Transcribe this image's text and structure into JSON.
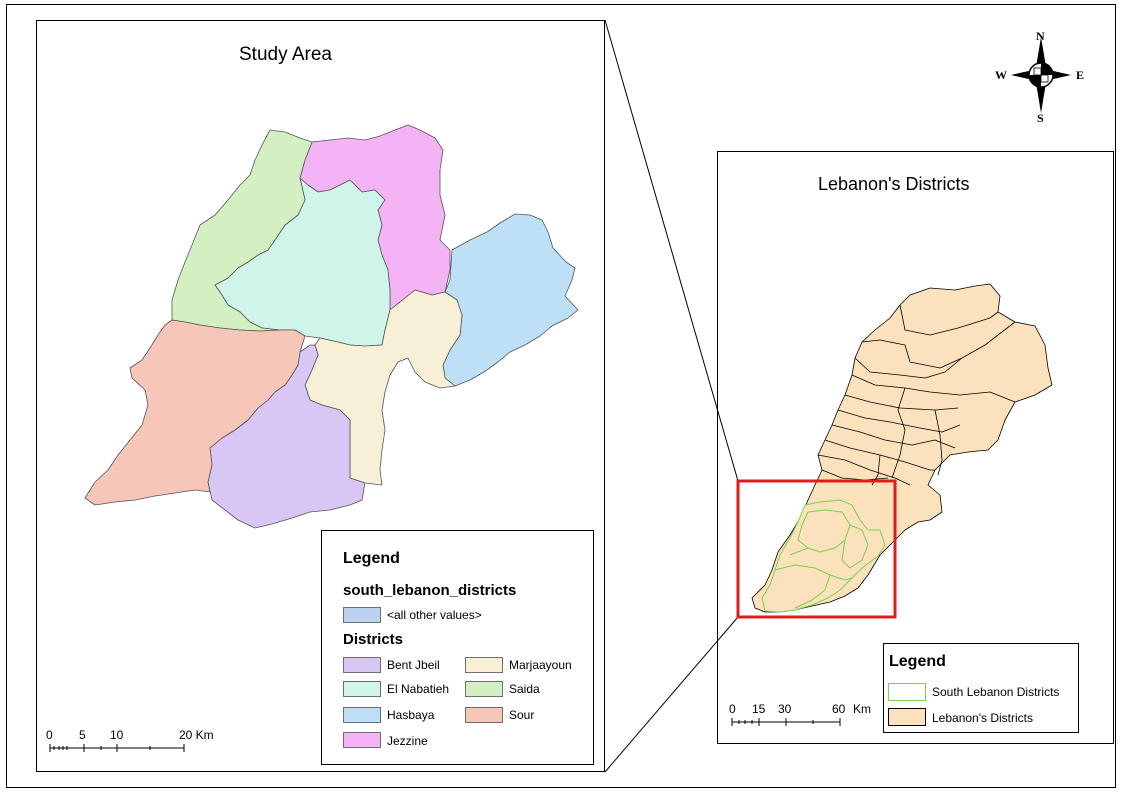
{
  "study_area": {
    "title": "Study Area",
    "legend": {
      "title": "Legend",
      "layer": "south_lebanon_districts",
      "other_values": "<all other values>",
      "field": "Districts",
      "items": [
        {
          "label": "Bent Jbeil",
          "color": "#d8c6f4"
        },
        {
          "label": "El Nabatieh",
          "color": "#cff5ea"
        },
        {
          "label": "Hasbaya",
          "color": "#bde0f7"
        },
        {
          "label": "Jezzine",
          "color": "#f4b3f4"
        },
        {
          "label": "Marjaayoun",
          "color": "#f7f0d6"
        },
        {
          "label": "Saida",
          "color": "#d4f0c2"
        },
        {
          "label": "Sour",
          "color": "#f6c6b8"
        }
      ],
      "other_color": "#bcd2ee"
    },
    "scale": {
      "t0": "0",
      "t1": "5",
      "t2": "10",
      "t3": "20 Km"
    }
  },
  "lebanon": {
    "title": "Lebanon's Districts",
    "legend": {
      "title": "Legend",
      "items": [
        {
          "label": "South Lebanon Districts",
          "fill": "#ffffff",
          "stroke": "#7ad14a"
        },
        {
          "label": "Lebanon's Districts",
          "fill": "#fbe2bd",
          "stroke": "#000000"
        }
      ]
    },
    "scale": {
      "t0": "0",
      "t1": "15",
      "t2": "30",
      "t3": "60",
      "unit": "Km"
    },
    "highlight_color": "#e01b1b"
  },
  "compass": {
    "n": "N",
    "s": "S",
    "e": "E",
    "w": "W"
  }
}
